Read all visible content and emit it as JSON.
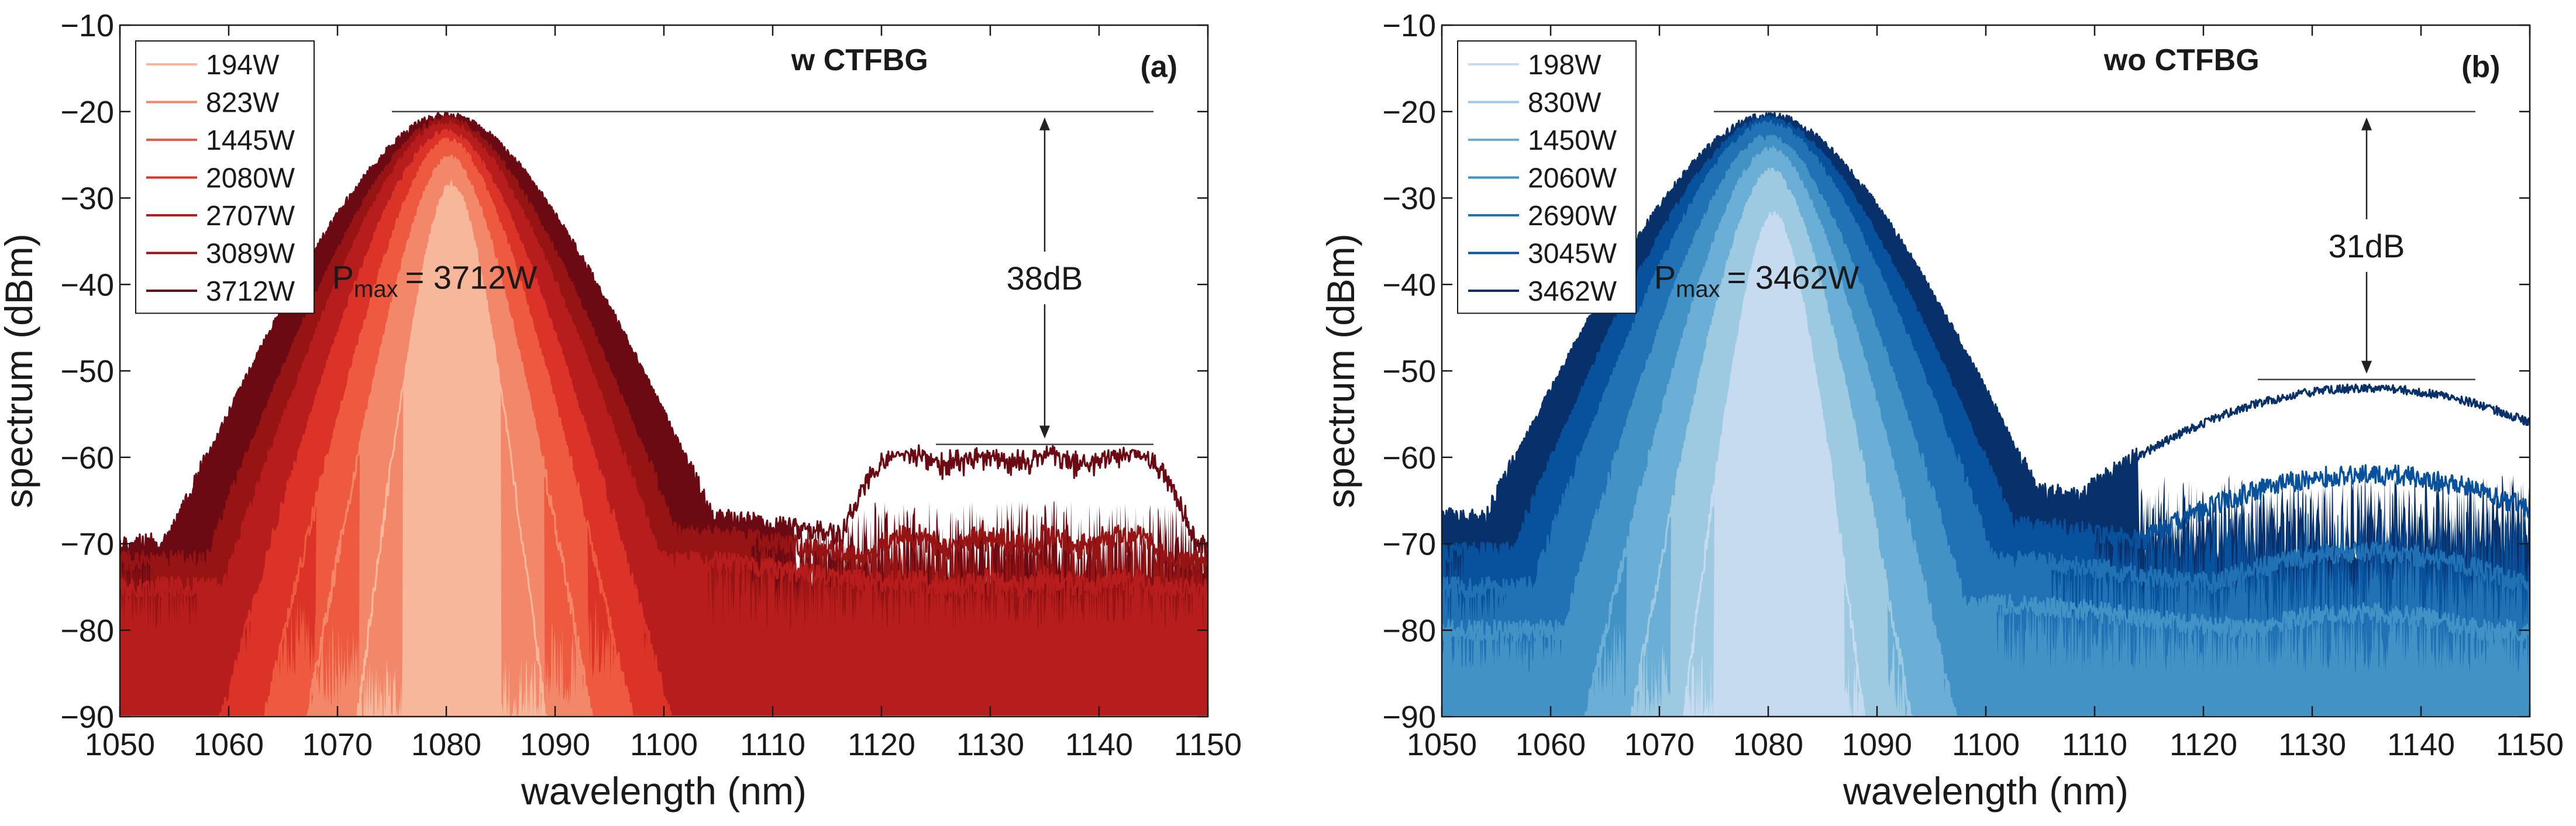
{
  "chart_data": [
    {
      "type": "line",
      "panel_letter": "(a)",
      "title": "w CTFBG",
      "xlabel": "wavelength (nm)",
      "ylabel": "spectrum (dBm)",
      "xlim": [
        1050,
        1150
      ],
      "ylim": [
        -90,
        -10
      ],
      "xticks": [
        "1050",
        "1060",
        "1070",
        "1080",
        "1090",
        "1100",
        "1110",
        "1120",
        "1130",
        "1140",
        "1150"
      ],
      "yticks": [
        "−10",
        "−20",
        "−30",
        "−40",
        "−50",
        "−60",
        "−70",
        "−80",
        "−90"
      ],
      "legend_position": "top-left",
      "pmax_prefix": "P",
      "pmax_sub": "max",
      "pmax_value": "= 3712W",
      "db_label": "38dB",
      "ref_upper_y": -20,
      "ref_lower_y": -58.5,
      "ref_line_x": [
        1075,
        1145
      ],
      "ref_lower_x": [
        1125,
        1145
      ],
      "arrow_x": 1135,
      "series": [
        {
          "name": "194W",
          "color": "#f6b79a",
          "peak": -28.5,
          "peak_x": 1080.5,
          "sigma": 2.6,
          "floor": -90,
          "bump": null,
          "flat_left": 1076,
          "flat_right": 1085
        },
        {
          "name": "823W",
          "color": "#f3876a",
          "peak": -25.5,
          "peak_x": 1080.3,
          "sigma": 3.8,
          "floor": -86,
          "bump": null,
          "flat_left": 1072,
          "flat_right": 1089
        },
        {
          "name": "1445W",
          "color": "#ee5a3f",
          "peak": -23.5,
          "peak_x": 1080.2,
          "sigma": 4.8,
          "floor": -83,
          "bump": null,
          "flat_left": 1068,
          "flat_right": 1093
        },
        {
          "name": "2080W",
          "color": "#db3328",
          "peak": -22.5,
          "peak_x": 1080.0,
          "sigma": 5.8,
          "floor": -80,
          "bump": null,
          "flat_left": 1062,
          "flat_right": 1098
        },
        {
          "name": "2707W",
          "color": "#b71d1d",
          "peak": -21.5,
          "peak_x": 1080.0,
          "sigma": 6.8,
          "floor": -77,
          "bump": -74,
          "flat_left": 1057,
          "flat_right": 1104
        },
        {
          "name": "3089W",
          "color": "#961414",
          "peak": -21.0,
          "peak_x": 1080.0,
          "sigma": 7.6,
          "floor": -74,
          "bump": -69,
          "flat_left": 1053,
          "flat_right": 1108
        },
        {
          "name": "3712W",
          "color": "#6b0a12",
          "peak": -20.5,
          "peak_x": 1080.0,
          "sigma": 9.0,
          "floor": -72,
          "bump": -59.5,
          "flat_left": 1050,
          "flat_right": 1112
        }
      ]
    },
    {
      "type": "line",
      "panel_letter": "(b)",
      "title": "wo CTFBG",
      "xlabel": "wavelength (nm)",
      "ylabel": "spectrum (dBm)",
      "xlim": [
        1050,
        1150
      ],
      "ylim": [
        -90,
        -10
      ],
      "xticks": [
        "1050",
        "1060",
        "1070",
        "1080",
        "1090",
        "1100",
        "1110",
        "1120",
        "1130",
        "1140",
        "1150"
      ],
      "yticks": [
        "−10",
        "−20",
        "−30",
        "−40",
        "−50",
        "−60",
        "−70",
        "−80",
        "−90"
      ],
      "legend_position": "top-left",
      "pmax_prefix": "P",
      "pmax_sub": "max",
      "pmax_value": "= 3462W",
      "db_label": "31dB",
      "ref_upper_y": -20,
      "ref_lower_y": -51,
      "ref_line_x": [
        1075,
        1145
      ],
      "ref_lower_x": [
        1125,
        1145
      ],
      "arrow_x": 1135,
      "series": [
        {
          "name": "198W",
          "color": "#c6dbef",
          "peak": -32.0,
          "peak_x": 1080.5,
          "sigma": 2.6,
          "floor": -90,
          "bump": null,
          "flat_left": 1075,
          "flat_right": 1087
        },
        {
          "name": "830W",
          "color": "#9ecae1",
          "peak": -27.0,
          "peak_x": 1080.3,
          "sigma": 3.8,
          "floor": -88,
          "bump": null,
          "flat_left": 1071,
          "flat_right": 1091
        },
        {
          "name": "1450W",
          "color": "#6baed6",
          "peak": -24.5,
          "peak_x": 1080.2,
          "sigma": 4.9,
          "floor": -85,
          "bump": null,
          "flat_left": 1067,
          "flat_right": 1096
        },
        {
          "name": "2060W",
          "color": "#4292c6",
          "peak": -23.0,
          "peak_x": 1080.0,
          "sigma": 6.0,
          "floor": -82,
          "bump": -78,
          "flat_left": 1061,
          "flat_right": 1101
        },
        {
          "name": "2690W",
          "color": "#2171b5",
          "peak": -21.5,
          "peak_x": 1080.0,
          "sigma": 7.2,
          "floor": -77,
          "bump": -71,
          "flat_left": 1056,
          "flat_right": 1106
        },
        {
          "name": "3045W",
          "color": "#08519c",
          "peak": -21.0,
          "peak_x": 1080.0,
          "sigma": 8.2,
          "floor": -73,
          "bump": -62,
          "flat_left": 1052,
          "flat_right": 1110
        },
        {
          "name": "3462W",
          "color": "#08306b",
          "peak": -20.5,
          "peak_x": 1080.0,
          "sigma": 9.5,
          "floor": -69,
          "bump": -52,
          "flat_left": 1050,
          "flat_right": 1114
        }
      ]
    }
  ]
}
